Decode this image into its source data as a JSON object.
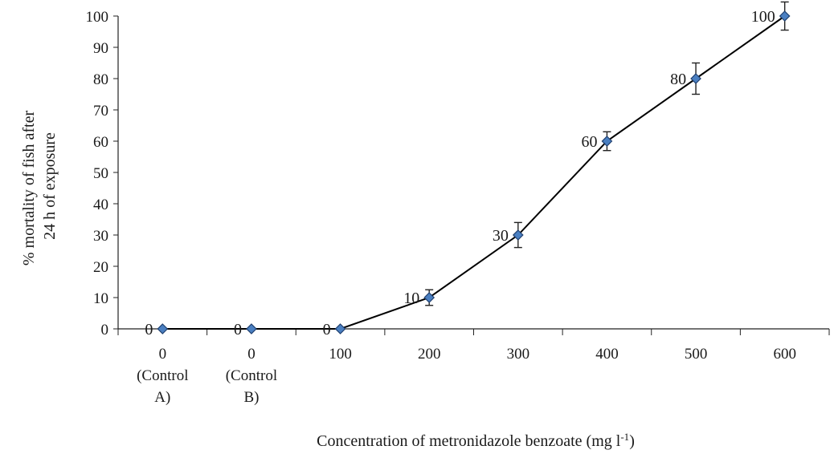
{
  "chart_data": {
    "type": "line",
    "xlabel": "Concentration of metronidazole benzoate (mg l",
    "xlabel_sup": "-1",
    "xlabel_tail": ")",
    "ylabel_lines": [
      "% mortality of fish after",
      "24 h of exposure"
    ],
    "categories": [
      [
        "0",
        "(Control",
        "A)"
      ],
      [
        "0",
        "(Control",
        "B)"
      ],
      [
        "100"
      ],
      [
        "200"
      ],
      [
        "300"
      ],
      [
        "400"
      ],
      [
        "500"
      ],
      [
        "600"
      ]
    ],
    "series": [
      {
        "values": [
          0,
          0,
          0,
          10,
          30,
          60,
          80,
          100
        ],
        "error": [
          0,
          0,
          0,
          2.5,
          4,
          3,
          5,
          4.5
        ],
        "data_labels": [
          "0",
          "0",
          "0",
          "10",
          "30",
          "60",
          "80",
          "100"
        ]
      }
    ],
    "ylim": [
      0,
      100
    ],
    "yticks": [
      "0",
      "10",
      "20",
      "30",
      "40",
      "50",
      "60",
      "70",
      "80",
      "90",
      "100"
    ],
    "grid": false,
    "legend": "none",
    "colors": {
      "marker": "#4a7fc1",
      "marker_edge": "#1f3f6e",
      "line": "#000000"
    }
  }
}
